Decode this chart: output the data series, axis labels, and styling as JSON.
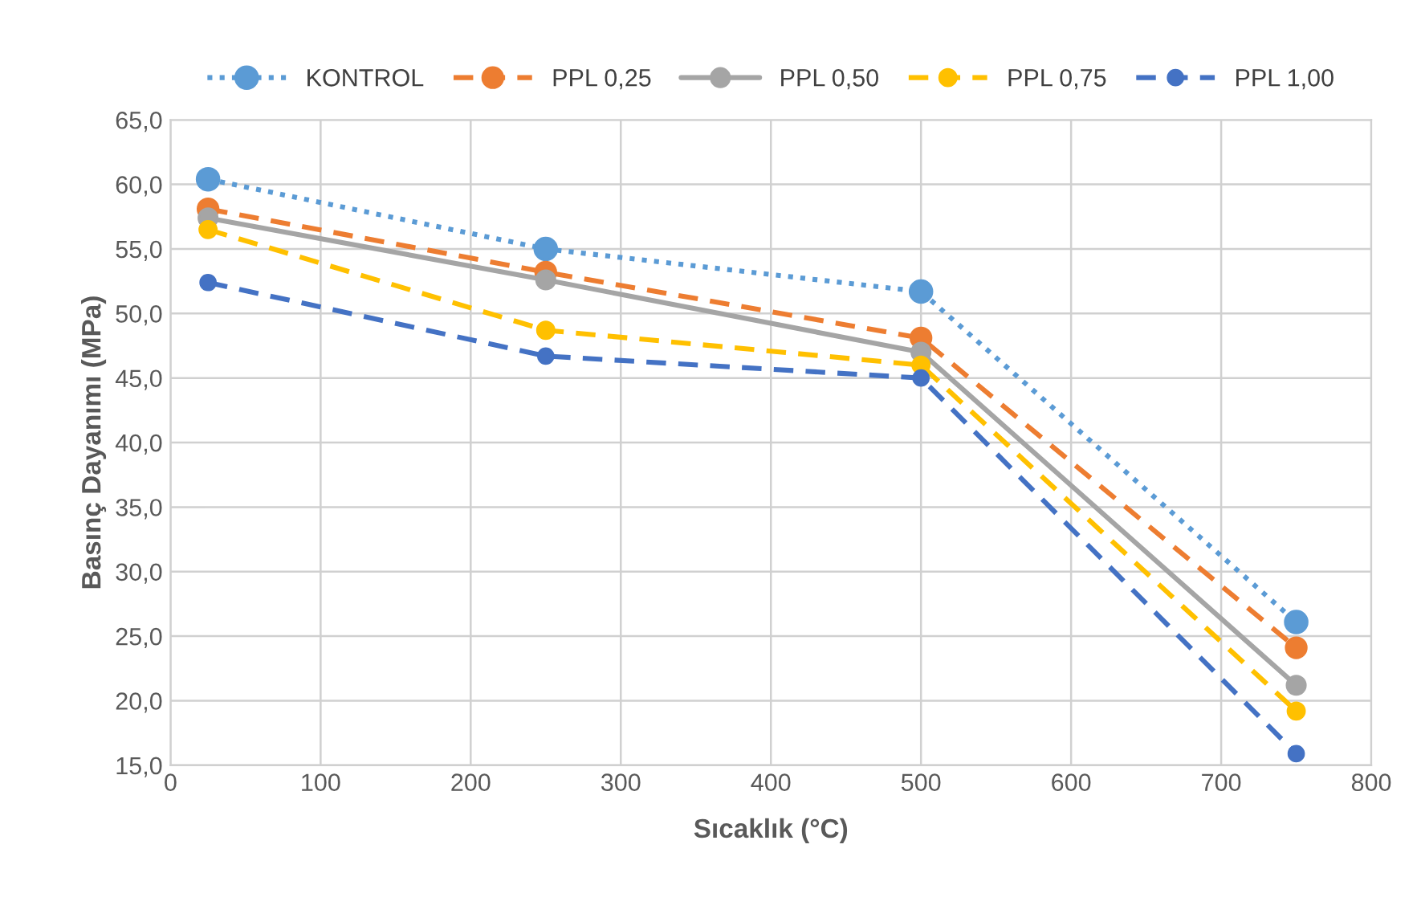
{
  "chart_data": {
    "type": "line",
    "xlabel": "Sıcaklık (°C)",
    "ylabel": "Basınç Dayanımı (MPa)",
    "x": [
      25,
      250,
      500,
      750
    ],
    "series": [
      {
        "name": "KONTROL",
        "color": "#5b9bd5",
        "line_style": "dotted",
        "values": [
          60.4,
          55.0,
          51.7,
          26.1
        ]
      },
      {
        "name": "PPL 0,25",
        "color": "#ed7d31",
        "line_style": "dashed",
        "values": [
          58.1,
          53.2,
          48.1,
          24.1
        ]
      },
      {
        "name": "PPL 0,50",
        "color": "#a5a5a5",
        "line_style": "solid",
        "values": [
          57.4,
          52.6,
          47.0,
          21.2
        ]
      },
      {
        "name": "PPL 0,75",
        "color": "#ffc000",
        "line_style": "dashed",
        "values": [
          56.5,
          48.7,
          46.0,
          19.2
        ]
      },
      {
        "name": "PPL 1,00",
        "color": "#4472c4",
        "line_style": "dashed",
        "values": [
          52.4,
          46.7,
          45.0,
          15.9
        ]
      }
    ],
    "xlim": [
      0,
      800
    ],
    "xticks": [
      0,
      100,
      200,
      300,
      400,
      500,
      600,
      700,
      800
    ],
    "ylim": [
      15,
      65
    ],
    "yticks": [
      {
        "value": 15,
        "label": "15,0"
      },
      {
        "value": 20,
        "label": "20,0"
      },
      {
        "value": 25,
        "label": "25,0"
      },
      {
        "value": 30,
        "label": "30,0"
      },
      {
        "value": 35,
        "label": "35,0"
      },
      {
        "value": 40,
        "label": "40,0"
      },
      {
        "value": 45,
        "label": "45,0"
      },
      {
        "value": 50,
        "label": "50,0"
      },
      {
        "value": 55,
        "label": "55,0"
      },
      {
        "value": 60,
        "label": "60,0"
      },
      {
        "value": 65,
        "label": "65,0"
      }
    ],
    "grid": true,
    "legend": "top",
    "marker": "circle"
  }
}
